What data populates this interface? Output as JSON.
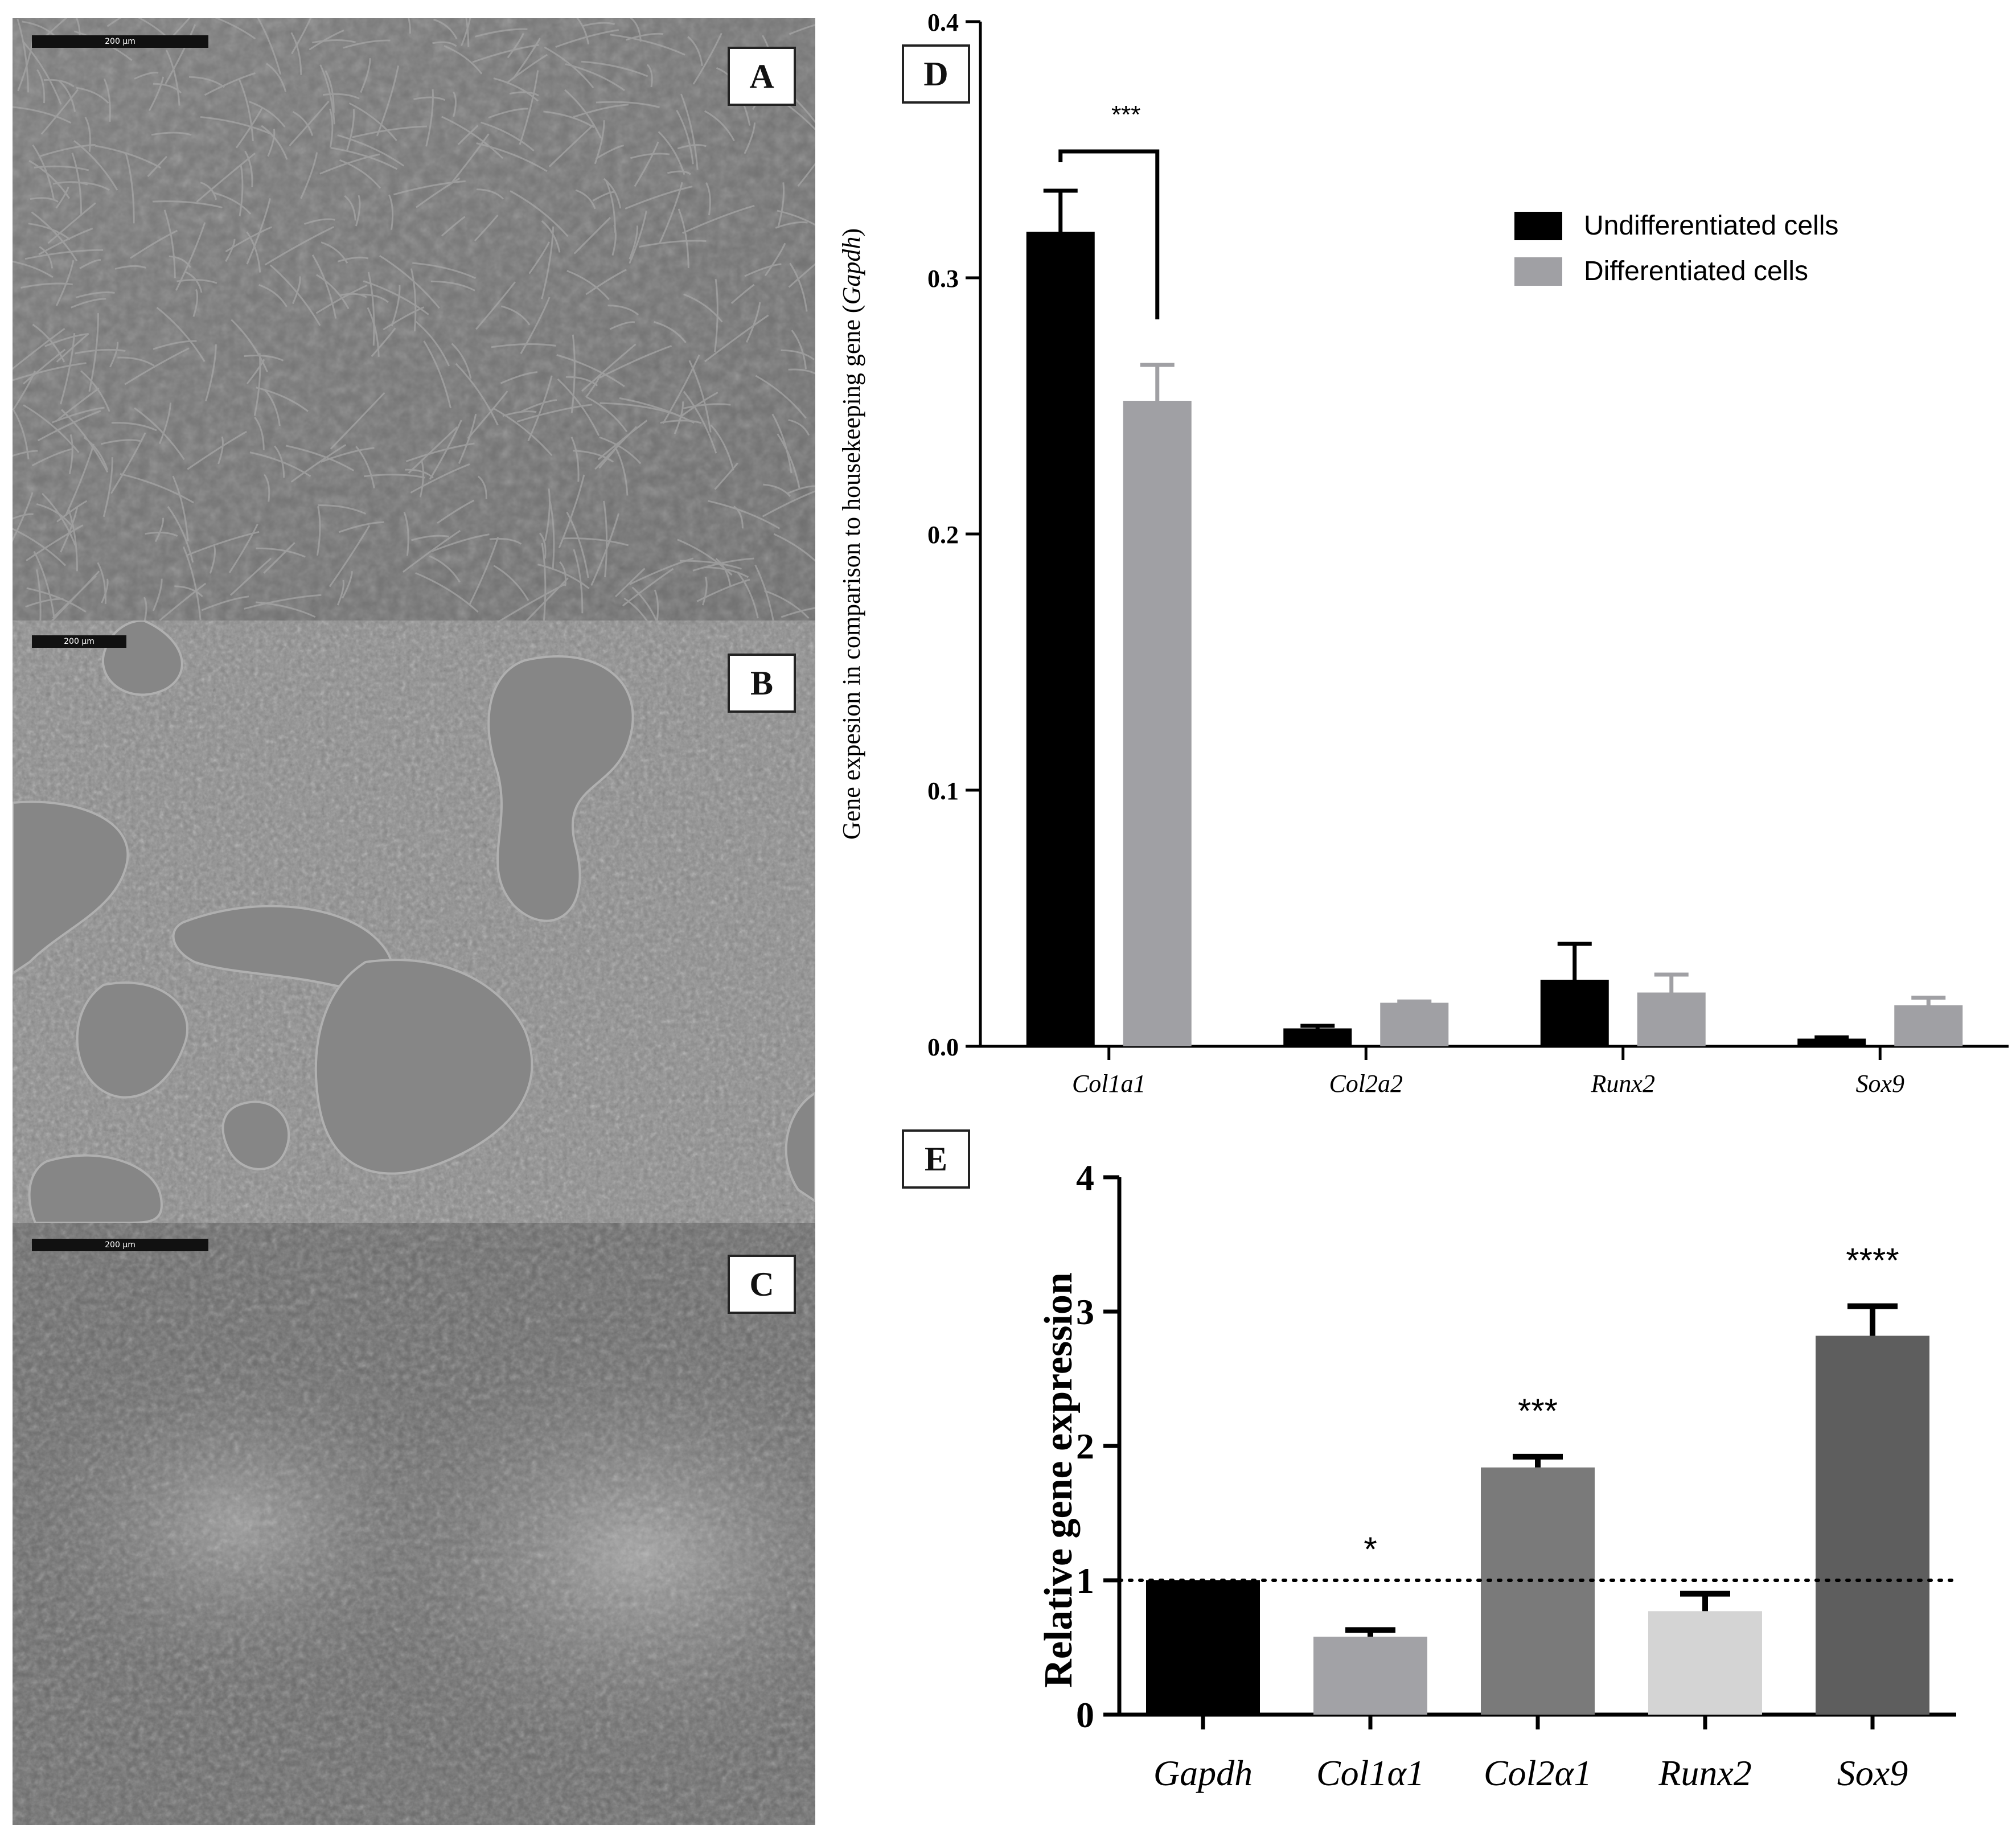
{
  "panels": {
    "A": {
      "letter": "A",
      "scale": "200 µm"
    },
    "B": {
      "letter": "B",
      "scale": "200 µm"
    },
    "C": {
      "letter": "C",
      "scale": "200 µm"
    },
    "D": {
      "letter": "D"
    },
    "E": {
      "letter": "E"
    }
  },
  "chart_data": [
    {
      "type": "bar",
      "panel": "D",
      "title": "",
      "xlabel": "",
      "ylabel": "Gene expesion in comparison to housekeeping gene (Gapdh)",
      "ylabel_plain": "Gene expesion in comparison to housekeeping gene (",
      "ylabel_italic": "Gapdh",
      "ylabel_close": ")",
      "ylim": [
        0,
        0.4
      ],
      "yticks": [
        "0.0",
        "0.1",
        "0.2",
        "0.3",
        "0.4"
      ],
      "categories": [
        "Col1a1",
        "Col2a2",
        "Runx2",
        "Sox9"
      ],
      "series": [
        {
          "name": "Undifferentiated cells",
          "color": "#000000",
          "values": [
            0.318,
            0.007,
            0.026,
            0.003
          ],
          "errors": [
            0.016,
            0.001,
            0.014,
            0.0005
          ]
        },
        {
          "name": "Differentiated cells",
          "color": "#a0a0a4",
          "values": [
            0.252,
            0.017,
            0.021,
            0.016
          ],
          "errors": [
            0.014,
            0.0005,
            0.007,
            0.003
          ]
        }
      ],
      "annotations": [
        {
          "text": "***",
          "between": [
            "Col1a1:Undifferentiated cells",
            "Col1a1:Differentiated cells"
          ]
        }
      ],
      "legend": "top-right",
      "grid": false
    },
    {
      "type": "bar",
      "panel": "E",
      "title": "",
      "xlabel": "",
      "ylabel": "Relative gene expression",
      "ylim": [
        0,
        4
      ],
      "yticks": [
        "0",
        "1",
        "2",
        "3",
        "4"
      ],
      "categories": [
        "Gapdh",
        "Col1α1",
        "Col2α1",
        "Runx2",
        "Sox9"
      ],
      "values": [
        1.0,
        0.58,
        1.84,
        0.77,
        2.82
      ],
      "errors": [
        0.0,
        0.05,
        0.08,
        0.13,
        0.22
      ],
      "colors": [
        "#000000",
        "#a2a2a6",
        "#7a7a7a",
        "#d4d4d4",
        "#5e5e5e"
      ],
      "significance": [
        "",
        "*",
        "***",
        "",
        "****"
      ],
      "reference_line": 1,
      "grid": false
    }
  ]
}
